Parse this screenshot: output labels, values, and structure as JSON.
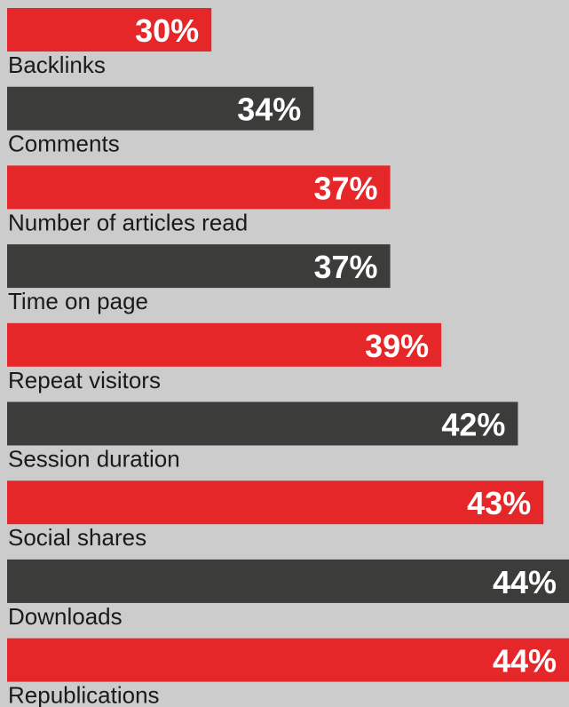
{
  "chart_data": {
    "type": "hbar",
    "categories": [
      "Backlinks",
      "Comments",
      "Number of articles read",
      "Time on page",
      "Repeat visitors",
      "Session duration",
      "Social shares",
      "Downloads",
      "Republications"
    ],
    "values": [
      30,
      34,
      37,
      37,
      39,
      42,
      43,
      44,
      44
    ],
    "value_labels": [
      "30%",
      "34%",
      "37%",
      "37%",
      "39%",
      "42%",
      "43%",
      "44%",
      "44%"
    ],
    "colors": [
      "#e5272a",
      "#3c3c3b",
      "#e5272a",
      "#3c3c3b",
      "#e5272a",
      "#3c3c3b",
      "#e5272a",
      "#3c3c3b",
      "#e5272a"
    ],
    "xlim": [
      22,
      44
    ]
  }
}
